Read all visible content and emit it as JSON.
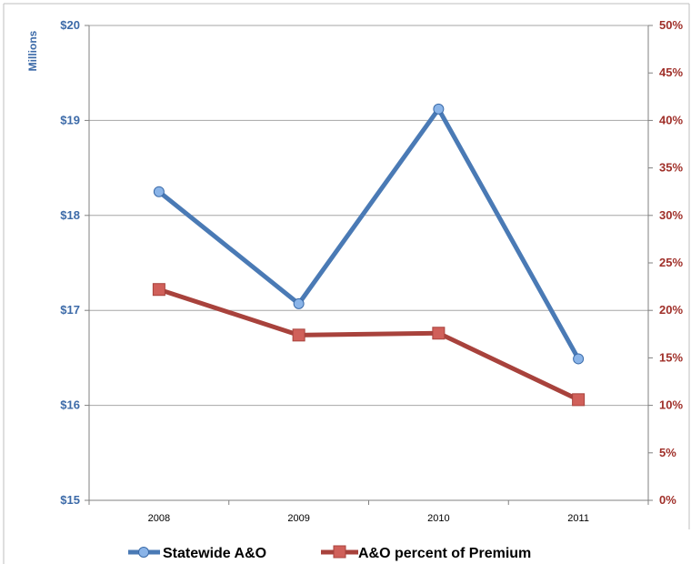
{
  "colors": {
    "statewide": "#4a7ab5",
    "statewide_marker": "#8ab4e8",
    "statewide_axis": "#3c6aa8",
    "percent": "#a8423c",
    "percent_marker": "#d0605a",
    "percent_axis": "#a0302a",
    "grid": "#a6a6a6",
    "frame": "#808080"
  },
  "chart_data": {
    "type": "line",
    "categories": [
      "2008",
      "2009",
      "2010",
      "2011"
    ],
    "y_left": {
      "label": "Millions",
      "ylim": [
        15,
        20
      ],
      "ticks": [
        15,
        16,
        17,
        18,
        19,
        20
      ],
      "tick_labels": [
        "$15",
        "$16",
        "$17",
        "$18",
        "$19",
        "$20"
      ]
    },
    "y_right": {
      "ylim": [
        0,
        0.5
      ],
      "ticks": [
        0,
        0.05,
        0.1,
        0.15,
        0.2,
        0.25,
        0.3,
        0.35,
        0.4,
        0.45,
        0.5
      ],
      "tick_labels": [
        "0%",
        "5%",
        "10%",
        "15%",
        "20%",
        "25%",
        "30%",
        "35%",
        "40%",
        "45%",
        "50%"
      ]
    },
    "series": [
      {
        "name": "Statewide A&O",
        "axis": "left",
        "marker": "circle",
        "values": [
          18.25,
          17.07,
          19.12,
          16.49
        ]
      },
      {
        "name": "A&O percent of Premium",
        "axis": "right",
        "marker": "square",
        "values": [
          0.222,
          0.174,
          0.176,
          0.106
        ]
      }
    ],
    "grid": true,
    "legend": "bottom"
  }
}
